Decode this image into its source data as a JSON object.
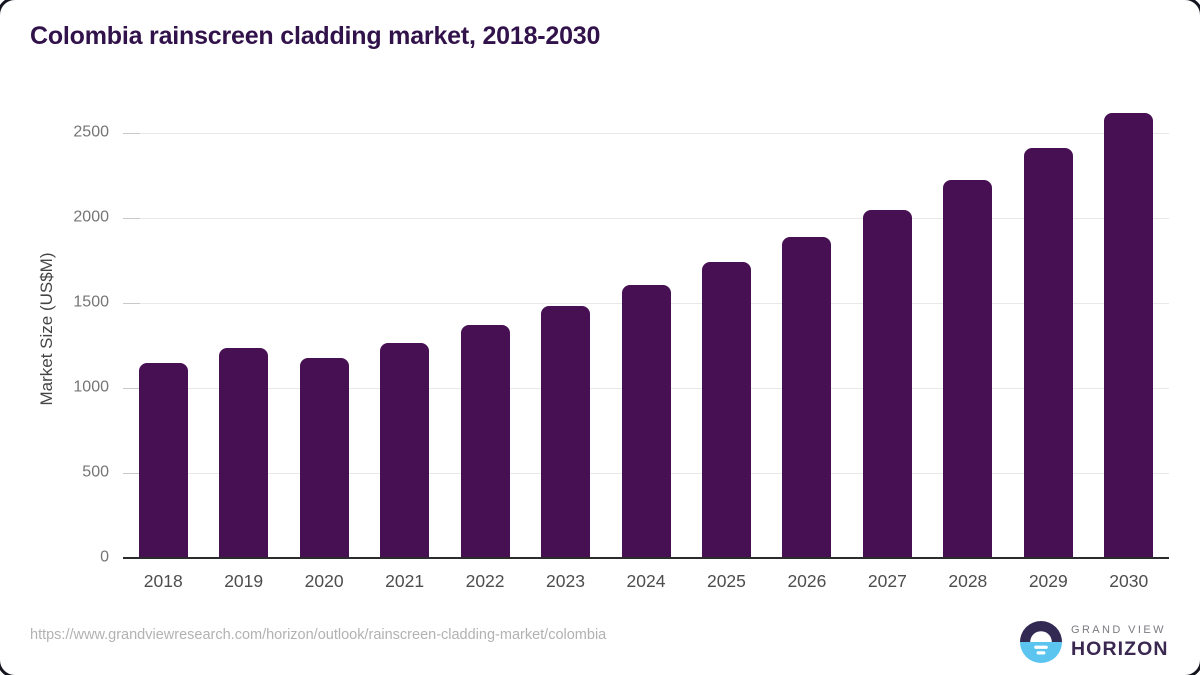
{
  "title": "Colombia rainscreen cladding market, 2018-2030",
  "colors": {
    "bar": "#471053",
    "title_text": "#31124a",
    "logo_dark": "#332a54",
    "logo_blue": "#5bc5f0",
    "axis_line": "#2b2b2b",
    "gridline": "#e8e8e8"
  },
  "chart_data": {
    "type": "bar",
    "title": "Colombia rainscreen cladding market, 2018-2030",
    "categories": [
      "2018",
      "2019",
      "2020",
      "2021",
      "2022",
      "2023",
      "2024",
      "2025",
      "2026",
      "2027",
      "2028",
      "2029",
      "2030"
    ],
    "values": [
      1145,
      1235,
      1175,
      1265,
      1370,
      1480,
      1605,
      1740,
      1890,
      2045,
      2225,
      2410,
      2620
    ],
    "series": [
      {
        "name": "Market Size",
        "values": [
          1145,
          1235,
          1175,
          1265,
          1370,
          1480,
          1605,
          1740,
          1890,
          2045,
          2225,
          2410,
          2620
        ]
      }
    ],
    "xlabel": "",
    "ylabel": "Market Size (US$M)",
    "ylim": [
      0,
      2700
    ],
    "yticks": [
      0,
      500,
      1000,
      1500,
      2000,
      2500
    ],
    "grid": true,
    "legend": false,
    "bar_color": "#471053"
  },
  "footer": {
    "source_url": "https://www.grandviewresearch.com/horizon/outlook/rainscreen-cladding-market/colombia",
    "brand_top": "GRAND VIEW",
    "brand_bottom": "HORIZON"
  }
}
